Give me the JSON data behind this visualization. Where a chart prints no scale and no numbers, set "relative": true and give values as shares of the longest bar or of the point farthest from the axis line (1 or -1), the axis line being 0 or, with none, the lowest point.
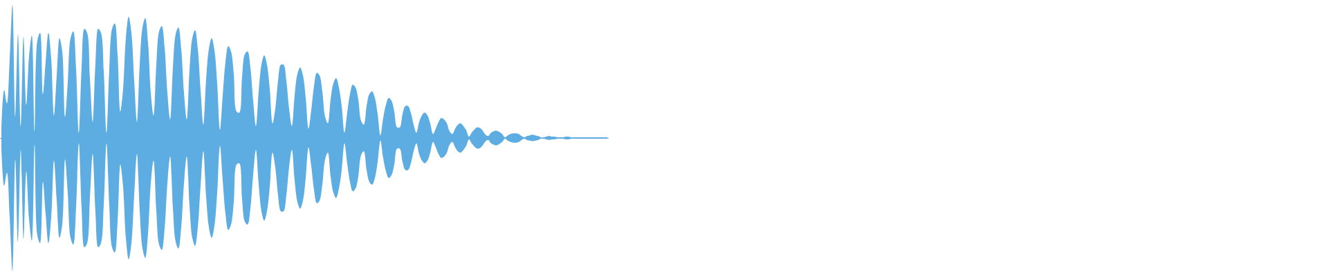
{
  "chart_data": {
    "type": "area",
    "relative": true,
    "categories": [
      null,
      null,
      null,
      null,
      null,
      null,
      null,
      null,
      null,
      null,
      null,
      null,
      null,
      null,
      null,
      null,
      null,
      null,
      null,
      null,
      null,
      null,
      null,
      null,
      null,
      null,
      null,
      null,
      null,
      null,
      null,
      null,
      null,
      null,
      null,
      null,
      null,
      null,
      null,
      null,
      null,
      null,
      null,
      null,
      null,
      null,
      null,
      null,
      null,
      null,
      null,
      null,
      null,
      null,
      null,
      null,
      null,
      null,
      null,
      null,
      null,
      null,
      null,
      null,
      null,
      null,
      null,
      null,
      null,
      null,
      null,
      null,
      null,
      null,
      null,
      null,
      null,
      null,
      null,
      null,
      null,
      null,
      null,
      null,
      null,
      null,
      null,
      null,
      null,
      null,
      null,
      null,
      null,
      null,
      null,
      null,
      null,
      null,
      null,
      null,
      null,
      null,
      null,
      null,
      null,
      null,
      null,
      null,
      null,
      null,
      null,
      null,
      null,
      null,
      null,
      null,
      null,
      null,
      null,
      null,
      null,
      null,
      null,
      null,
      null,
      null,
      null,
      null,
      null,
      null,
      null,
      null,
      null,
      null,
      null,
      null,
      null,
      null,
      null,
      null,
      null,
      null,
      null,
      null,
      null,
      null,
      null,
      null,
      null,
      null,
      null,
      null,
      null,
      null,
      null,
      null,
      null,
      null,
      null,
      null,
      null,
      null,
      null,
      null,
      null,
      null,
      null,
      null,
      null,
      null,
      null,
      null,
      null,
      null,
      null,
      null,
      null,
      null,
      null,
      null,
      null,
      null,
      null,
      null,
      null,
      null,
      null,
      null,
      null,
      null,
      null,
      null,
      null,
      null,
      null,
      null,
      null,
      null,
      null,
      null,
      null,
      null,
      null,
      null,
      null,
      null,
      null,
      null,
      null,
      null,
      null,
      null,
      null,
      null,
      null,
      null,
      null,
      null,
      null,
      null
    ],
    "ref_lines": [
      {
        "axis": "y",
        "value": 0,
        "color": "#5dade2"
      }
    ],
    "series": [
      {
        "color": "#5dade2",
        "values": [
          0.08,
          0.36,
          0.26,
          0.59,
          1.0,
          0.16,
          0.78,
          0.09,
          0.76,
          0.25,
          0.61,
          0.77,
          0.05,
          0.73,
          0.79,
          0.33,
          0.57,
          0.79,
          0.6,
          0.17,
          0.47,
          0.75,
          0.65,
          0.16,
          0.42,
          0.75,
          0.8,
          0.52,
          0.04,
          0.53,
          0.82,
          0.79,
          0.45,
          0.12,
          0.56,
          0.82,
          0.79,
          0.5,
          0.04,
          0.51,
          0.82,
          0.86,
          0.63,
          0.2,
          0.37,
          0.75,
          0.91,
          0.79,
          0.43,
          0.12,
          0.55,
          0.83,
          0.9,
          0.72,
          0.34,
          0.17,
          0.55,
          0.8,
          0.84,
          0.68,
          0.34,
          0.14,
          0.53,
          0.78,
          0.83,
          0.67,
          0.34,
          0.14,
          0.51,
          0.75,
          0.81,
          0.67,
          0.36,
          0.1,
          0.44,
          0.67,
          0.75,
          0.66,
          0.41,
          0.06,
          0.32,
          0.57,
          0.69,
          0.65,
          0.48,
          0.2,
          0.19,
          0.46,
          0.63,
          0.65,
          0.53,
          0.28,
          0.09,
          0.35,
          0.55,
          0.62,
          0.55,
          0.37,
          0.11,
          0.22,
          0.43,
          0.55,
          0.55,
          0.43,
          0.22,
          0.09,
          0.32,
          0.48,
          0.53,
          0.47,
          0.3,
          0.07,
          0.21,
          0.39,
          0.49,
          0.47,
          0.35,
          0.16,
          0.11,
          0.29,
          0.41,
          0.45,
          0.38,
          0.24,
          0.04,
          0.19,
          0.33,
          0.4,
          0.38,
          0.29,
          0.13,
          0.1,
          0.24,
          0.33,
          0.35,
          0.3,
          0.18,
          0.02,
          0.15,
          0.25,
          0.3,
          0.28,
          0.2,
          0.08,
          0.08,
          0.18,
          0.24,
          0.24,
          0.19,
          0.1,
          0.04,
          0.12,
          0.17,
          0.19,
          0.17,
          0.11,
          0.03,
          0.07,
          0.12,
          0.15,
          0.14,
          0.11,
          0.05,
          0.03,
          0.07,
          0.1,
          0.11,
          0.09,
          0.06,
          0.01,
          0.04,
          0.065,
          0.08,
          0.075,
          0.055,
          0.025,
          0.015,
          0.04,
          0.05,
          0.055,
          0.045,
          0.03,
          0.005,
          0.02,
          0.03,
          0.035,
          0.035,
          0.03,
          0.015,
          0.005,
          0.015,
          0.02,
          0.025,
          0.02,
          0.015,
          0.005,
          0.005,
          0.01,
          0.015,
          0.01,
          0.01,
          0.005,
          0.005,
          0.005,
          0.01,
          0.01,
          0.005,
          0.005,
          null,
          0.005,
          0.005,
          0.005,
          0.005,
          0.005,
          null,
          null,
          null,
          0.005,
          0.005,
          0.005
        ]
      },
      {
        "color": "#5dade2",
        "values": [
          -0.08,
          -0.36,
          -0.26,
          -0.59,
          -1.0,
          -0.16,
          -0.78,
          -0.09,
          -0.76,
          -0.25,
          -0.61,
          -0.77,
          -0.05,
          -0.73,
          -0.79,
          -0.33,
          -0.57,
          -0.79,
          -0.6,
          -0.17,
          -0.47,
          -0.75,
          -0.65,
          -0.16,
          -0.42,
          -0.75,
          -0.8,
          -0.52,
          -0.04,
          -0.53,
          -0.82,
          -0.79,
          -0.45,
          -0.12,
          -0.56,
          -0.82,
          -0.79,
          -0.5,
          -0.04,
          -0.51,
          -0.82,
          -0.86,
          -0.63,
          -0.2,
          -0.37,
          -0.75,
          -0.91,
          -0.79,
          -0.43,
          -0.12,
          -0.55,
          -0.83,
          -0.9,
          -0.72,
          -0.34,
          -0.17,
          -0.55,
          -0.8,
          -0.84,
          -0.68,
          -0.34,
          -0.14,
          -0.53,
          -0.78,
          -0.83,
          -0.67,
          -0.34,
          -0.14,
          -0.51,
          -0.75,
          -0.81,
          -0.67,
          -0.36,
          -0.1,
          -0.44,
          -0.67,
          -0.75,
          -0.66,
          -0.41,
          -0.06,
          -0.32,
          -0.57,
          -0.69,
          -0.65,
          -0.48,
          -0.2,
          -0.19,
          -0.46,
          -0.63,
          -0.65,
          -0.53,
          -0.28,
          -0.09,
          -0.35,
          -0.55,
          -0.62,
          -0.55,
          -0.37,
          -0.11,
          -0.22,
          -0.43,
          -0.55,
          -0.55,
          -0.43,
          -0.22,
          -0.09,
          -0.32,
          -0.48,
          -0.53,
          -0.47,
          -0.3,
          -0.07,
          -0.21,
          -0.39,
          -0.49,
          -0.47,
          -0.35,
          -0.16,
          -0.11,
          -0.29,
          -0.41,
          -0.45,
          -0.38,
          -0.24,
          -0.04,
          -0.19,
          -0.33,
          -0.4,
          -0.38,
          -0.29,
          -0.13,
          -0.1,
          -0.24,
          -0.33,
          -0.35,
          -0.3,
          -0.18,
          -0.02,
          -0.15,
          -0.25,
          -0.3,
          -0.28,
          -0.2,
          -0.08,
          -0.08,
          -0.18,
          -0.24,
          -0.24,
          -0.19,
          -0.1,
          -0.04,
          -0.12,
          -0.17,
          -0.19,
          -0.17,
          -0.11,
          -0.03,
          -0.07,
          -0.12,
          -0.15,
          -0.14,
          -0.11,
          -0.05,
          -0.03,
          -0.07,
          -0.1,
          -0.11,
          -0.09,
          -0.06,
          -0.01,
          -0.04,
          -0.065,
          -0.08,
          -0.075,
          -0.055,
          -0.025,
          -0.015,
          -0.04,
          -0.05,
          -0.055,
          -0.045,
          -0.03,
          -0.005,
          -0.02,
          -0.03,
          -0.035,
          -0.035,
          -0.03,
          -0.015,
          -0.005,
          -0.015,
          -0.02,
          -0.025,
          -0.02,
          -0.015,
          -0.005,
          -0.005,
          -0.01,
          -0.015,
          -0.01,
          -0.01,
          -0.005,
          -0.005,
          -0.005,
          -0.01,
          -0.01,
          -0.005,
          -0.005,
          null,
          -0.005,
          -0.005,
          -0.005,
          -0.005,
          -0.005,
          null,
          null,
          null,
          -0.005,
          -0.005,
          -0.005
        ]
      }
    ]
  }
}
